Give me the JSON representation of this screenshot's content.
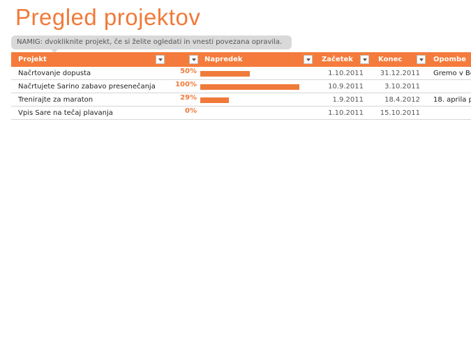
{
  "title": "Pregled projektov",
  "hint": "NAMIG: dvokliknite projekt, če si želite ogledati in vnesti povezana opravila.",
  "columns": {
    "project": "Projekt",
    "progress": "Napredek",
    "start": "Začetek",
    "end": "Konec",
    "notes": "Opombe"
  },
  "rows": [
    {
      "name": "Načrtovanje dopusta",
      "progress_label": "50%",
      "progress": 0.5,
      "start": "1.10.2011",
      "end": "31.12.2011",
      "notes": "Gremo v Be"
    },
    {
      "name": "Načrtujete Sarino zabavo presenečanja",
      "progress_label": "100%",
      "progress": 1.0,
      "start": "10.9.2011",
      "end": "3.10.2011",
      "notes": ""
    },
    {
      "name": "Trenirajte za maraton",
      "progress_label": "29%",
      "progress": 0.29,
      "start": "1.9.2011",
      "end": "18.4.2012",
      "notes": "18. aprila p"
    },
    {
      "name": "Vpis Sare na tečaj plavanja",
      "progress_label": "0%",
      "progress": 0.0,
      "start": "1.10.2011",
      "end": "15.10.2011",
      "notes": ""
    }
  ],
  "colors": {
    "accent": "#f07a3a",
    "header": "#f47b3b",
    "hint_bg": "#d9d9d9"
  }
}
